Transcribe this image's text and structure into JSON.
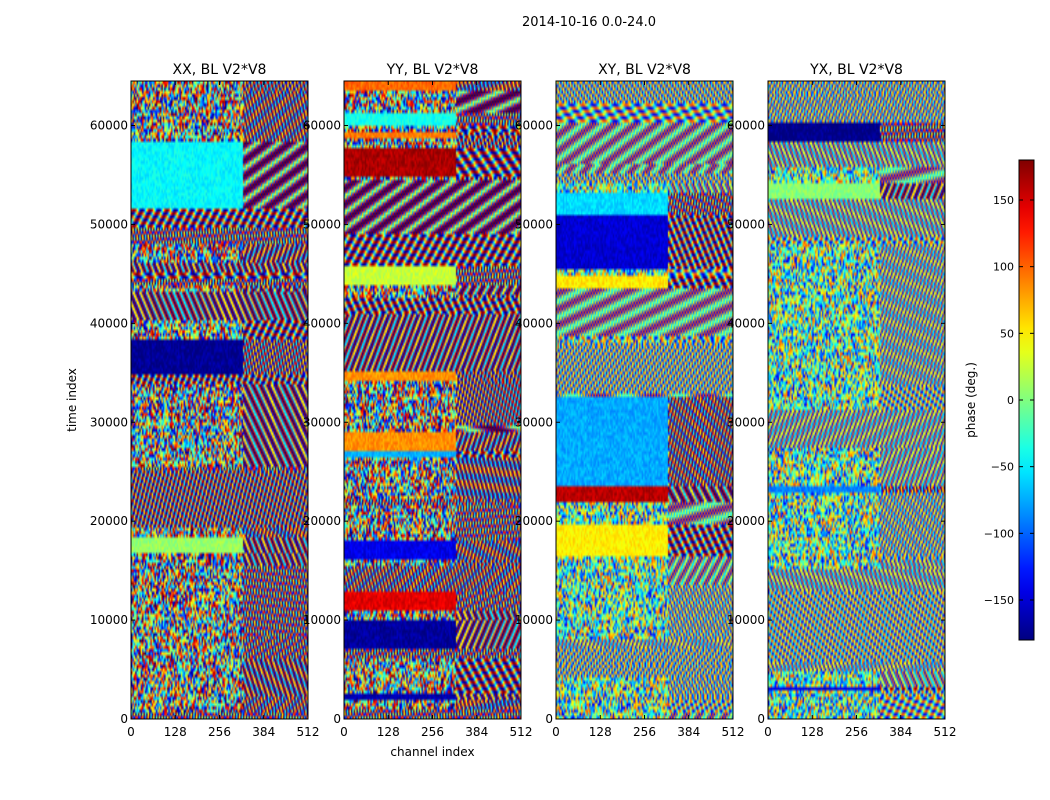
{
  "figure": {
    "title": "2014-10-16 0.0-24.0"
  },
  "chart_data": [
    {
      "type": "heatmap",
      "title": "XX, BL V2*V8",
      "xlabel": "",
      "ylabel": "time index",
      "xlim": [
        0,
        512
      ],
      "ylim": [
        0,
        64500
      ],
      "xticks": [
        0,
        128,
        256,
        384,
        512
      ],
      "yticks": [
        0,
        10000,
        20000,
        30000,
        40000,
        50000,
        60000
      ],
      "colormap": "jet",
      "value_range": [
        -180,
        180
      ]
    },
    {
      "type": "heatmap",
      "title": "YY, BL V2*V8",
      "xlabel": "channel index",
      "ylabel": "",
      "xlim": [
        0,
        512
      ],
      "ylim": [
        0,
        64500
      ],
      "xticks": [
        0,
        128,
        256,
        384,
        512
      ],
      "yticks": [
        0,
        10000,
        20000,
        30000,
        40000,
        50000,
        60000
      ],
      "colormap": "jet",
      "value_range": [
        -180,
        180
      ]
    },
    {
      "type": "heatmap",
      "title": "XY, BL V2*V8",
      "xlabel": "",
      "ylabel": "",
      "xlim": [
        0,
        512
      ],
      "ylim": [
        0,
        64500
      ],
      "xticks": [
        0,
        128,
        256,
        384,
        512
      ],
      "yticks": [
        0,
        10000,
        20000,
        30000,
        40000,
        50000,
        60000
      ],
      "colormap": "jet",
      "value_range": [
        -180,
        180
      ]
    },
    {
      "type": "heatmap",
      "title": "YX, BL V2*V8",
      "xlabel": "",
      "ylabel": "",
      "xlim": [
        0,
        512
      ],
      "ylim": [
        0,
        64500
      ],
      "xticks": [
        0,
        128,
        256,
        384,
        512
      ],
      "yticks": [
        0,
        10000,
        20000,
        30000,
        40000,
        50000,
        60000
      ],
      "colormap": "jet",
      "value_range": [
        -180,
        180
      ]
    }
  ],
  "colorbar": {
    "label": "phase (deg.)",
    "range": [
      -180,
      180
    ],
    "ticks": [
      -150,
      -100,
      -50,
      0,
      50,
      100,
      150
    ],
    "tick_labels": [
      "−150",
      "−100",
      "−50",
      "0",
      "50",
      "100",
      "150"
    ]
  }
}
